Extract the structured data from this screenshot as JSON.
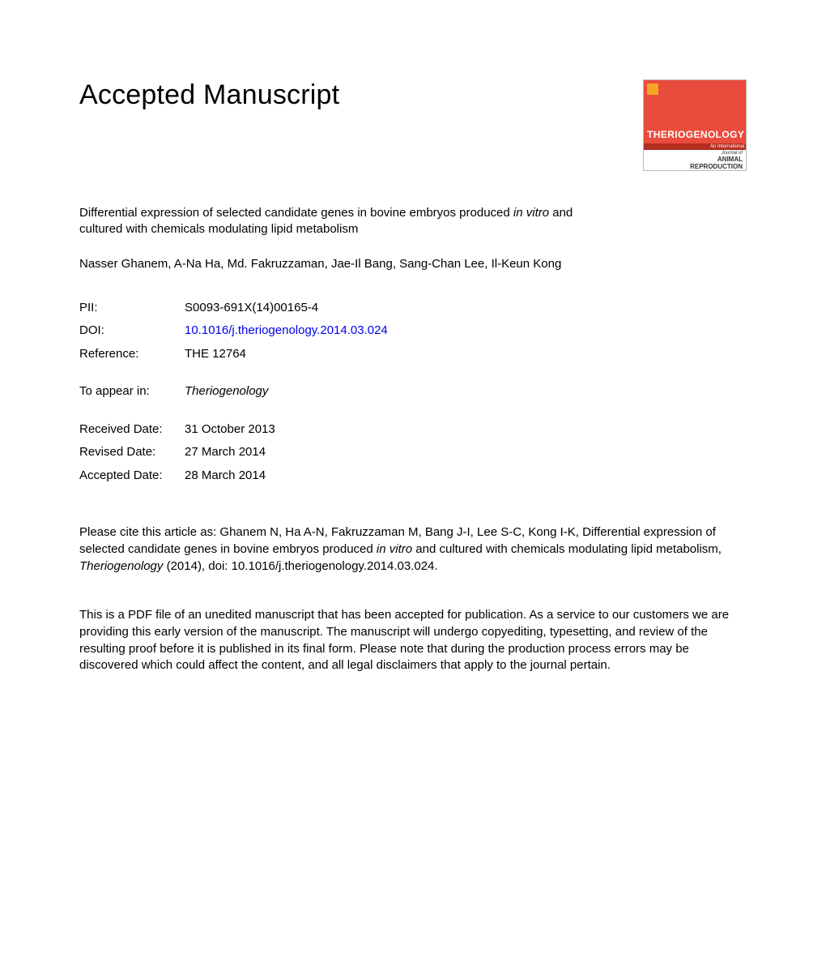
{
  "heading": "Accepted Manuscript",
  "journal_cover": {
    "title": "THERIOGENOLOGY",
    "strip_text": "An International",
    "sub_line1": "Journal of",
    "sub_line2": "ANIMAL",
    "sub_line3": "REPRODUCTION",
    "red_color": "#e94b3c",
    "strip_color": "#b52e21",
    "pub_color": "#f5a623"
  },
  "article_title_pre": "Differential expression of selected candidate genes in bovine embryos produced ",
  "article_title_italic": "in vitro",
  "article_title_post": " and cultured with chemicals modulating lipid metabolism",
  "authors": "Nasser Ghanem, A-Na Ha, Md. Fakruzzaman, Jae-Il Bang, Sang-Chan Lee, Il-Keun Kong",
  "meta": {
    "pii_label": "PII:",
    "pii_value": "S0093-691X(14)00165-4",
    "doi_label": "DOI:",
    "doi_value": "10.1016/j.theriogenology.2014.03.024",
    "ref_label": "Reference:",
    "ref_value": "THE 12764",
    "appear_label": "To appear in:",
    "appear_value": "Theriogenology",
    "received_label": "Received Date:",
    "received_value": "31 October 2013",
    "revised_label": "Revised Date:",
    "revised_value": "27 March 2014",
    "accepted_label": "Accepted Date:",
    "accepted_value": "28 March 2014"
  },
  "citation_pre": "Please cite this article as: Ghanem N, Ha A-N, Fakruzzaman M, Bang J-I, Lee S-C, Kong I-K, Differential expression of selected candidate genes in bovine embryos produced ",
  "citation_italic1": "in vitro",
  "citation_mid": " and cultured with chemicals modulating lipid metabolism, ",
  "citation_italic2": "Theriogenology",
  "citation_post": " (2014), doi: 10.1016/j.theriogenology.2014.03.024.",
  "disclaimer": "This is a PDF file of an unedited manuscript that has been accepted for publication. As a service to our customers we are providing this early version of the manuscript. The manuscript will undergo copyediting, typesetting, and review of the resulting proof before it is published in its final form. Please note that during the production process errors may be discovered which could affect the content, and all legal disclaimers that apply to the journal pertain."
}
